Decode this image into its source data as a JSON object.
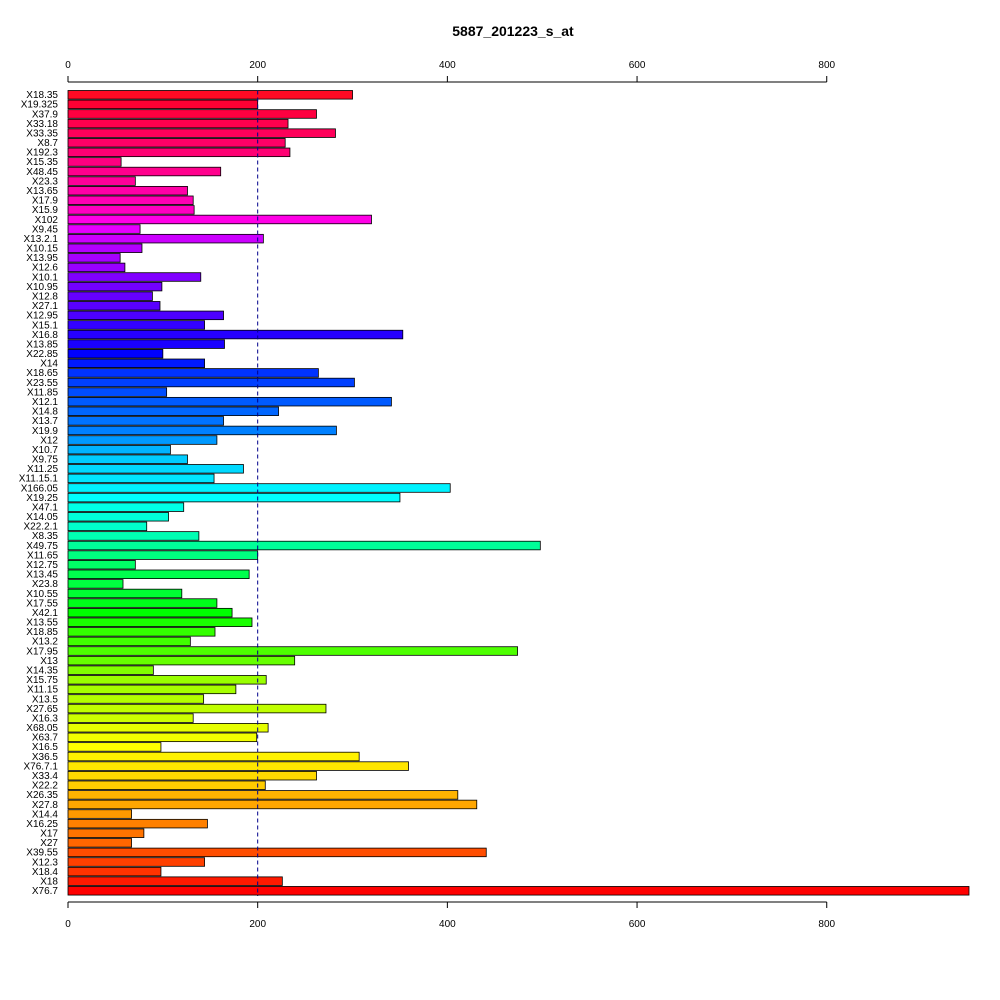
{
  "chart_data": {
    "type": "bar",
    "orientation": "horizontal",
    "title": "5887_201223_s_at",
    "xlim": [
      0,
      950
    ],
    "ticks": [
      0,
      200,
      400,
      600,
      800
    ],
    "tick_labels": [
      "0",
      "200",
      "400",
      "600",
      "800"
    ],
    "reference_line": 200,
    "categories": [
      "X18.35",
      "X19.325",
      "X37.9",
      "X33.18",
      "X33.35",
      "X8.7",
      "X192.3",
      "X15.35",
      "X48.45",
      "X23.3",
      "X13.65",
      "X17.9",
      "X15.9",
      "X102",
      "X9.45",
      "X13.2.1",
      "X10.15",
      "X13.95",
      "X12.6",
      "X10.1",
      "X10.95",
      "X12.8",
      "X27.1",
      "X12.95",
      "X15.1",
      "X16.8",
      "X13.85",
      "X22.85",
      "X14",
      "X18.65",
      "X23.55",
      "X11.85",
      "X12.1",
      "X14.8",
      "X13.7",
      "X19.9",
      "X12",
      "X10.7",
      "X9.75",
      "X11.25",
      "X11.15.1",
      "X166.05",
      "X19.25",
      "X47.1",
      "X14.05",
      "X22.2.1",
      "X8.35",
      "X49.75",
      "X11.65",
      "X12.75",
      "X13.45",
      "X23.8",
      "X10.55",
      "X17.55",
      "X42.1",
      "X13.55",
      "X18.85",
      "X13.2",
      "X17.95",
      "X13",
      "X14.35",
      "X15.75",
      "X11.15",
      "X13.5",
      "X27.65",
      "X16.3",
      "X68.05",
      "X63.7",
      "X16.5",
      "X36.5",
      "X76.7.1",
      "X33.4",
      "X22.2",
      "X26.35",
      "X27.8",
      "X14.4",
      "X16.25",
      "X17",
      "X27",
      "X39.55",
      "X12.3",
      "X18.4",
      "X18",
      "X76.7"
    ],
    "values": [
      300,
      200,
      262,
      232,
      282,
      229,
      234,
      56,
      161,
      71,
      126,
      132,
      133,
      320,
      76,
      206,
      78,
      55,
      60,
      140,
      99,
      89,
      97,
      164,
      144,
      353,
      165,
      100,
      144,
      264,
      302,
      104,
      341,
      222,
      164,
      283,
      157,
      108,
      126,
      185,
      154,
      403,
      350,
      122,
      106,
      83,
      138,
      498,
      200,
      71,
      191,
      58,
      120,
      157,
      173,
      194,
      155,
      129,
      474,
      239,
      90,
      209,
      177,
      143,
      272,
      132,
      211,
      199,
      98,
      307,
      359,
      262,
      208,
      411,
      431,
      67,
      147,
      80,
      67,
      441,
      144,
      98,
      226,
      950
    ],
    "colors": [
      "#ff0a24",
      "#ff0033",
      "#ff0040",
      "#ff004d",
      "#ff005a",
      "#ff0066",
      "#ff0073",
      "#ff0080",
      "#ff008d",
      "#ff0099",
      "#ff00a6",
      "#ff00b3",
      "#ff00c0",
      "#ff00e6",
      "#e600ff",
      "#cc00ff",
      "#b300ff",
      "#a600ff",
      "#9900ff",
      "#8000ff",
      "#7300ff",
      "#6600ff",
      "#5900ff",
      "#4d00ff",
      "#3300ff",
      "#2600ff",
      "#1a00ff",
      "#0000ff",
      "#0019ff",
      "#0033ff",
      "#0040ff",
      "#004dff",
      "#005aff",
      "#0066ff",
      "#0073ff",
      "#0080ff",
      "#0099ff",
      "#00b3ff",
      "#00ccff",
      "#00d9ff",
      "#00e6ff",
      "#00f2ff",
      "#00ffff",
      "#00ffe6",
      "#00ffd9",
      "#00ffcc",
      "#00ffb3",
      "#00ff99",
      "#00ff80",
      "#00ff66",
      "#00ff4d",
      "#00ff40",
      "#00ff33",
      "#00ff1a",
      "#00ff00",
      "#1aff00",
      "#33ff00",
      "#40ff00",
      "#4dff00",
      "#66ff00",
      "#80ff00",
      "#99ff00",
      "#a6ff00",
      "#b3ff00",
      "#c0ff00",
      "#ccff00",
      "#e6ff00",
      "#f2ff00",
      "#ffff00",
      "#fff200",
      "#ffe600",
      "#ffd900",
      "#ffcc00",
      "#ffb300",
      "#ffa600",
      "#ff9900",
      "#ff8000",
      "#ff7300",
      "#ff6600",
      "#ff4d00",
      "#ff4000",
      "#ff3300",
      "#ff1a00",
      "#ff0000"
    ]
  }
}
